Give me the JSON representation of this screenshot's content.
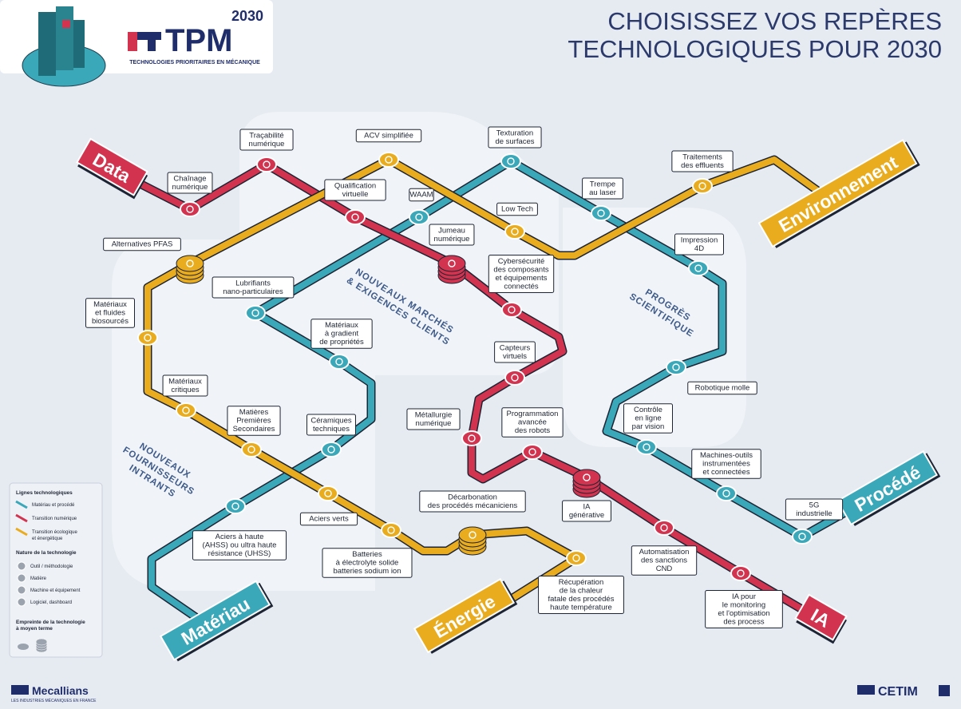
{
  "header": {
    "year": "2030",
    "brand": "TPM",
    "brand_subtitle": "TECHNOLOGIES PRIORITAIRES EN MÉCANIQUE",
    "title_lines": [
      "CHOISISSEZ VOS REPÈRES",
      "TECHNOLOGIQUES POUR 2030"
    ]
  },
  "zones": [
    [
      "NOUVEAUX MARCHÉS",
      "& EXIGENCES CLIENTS"
    ],
    [
      "PROGRÈS",
      "SCIENTIFIQUE"
    ],
    [
      "NOUVEAUX",
      "FOURNISSEURS",
      "INTRANTS"
    ]
  ],
  "lines": [
    {
      "color": "#3aa8b9",
      "terminals": [
        "Matériau",
        "Procédé"
      ],
      "stations": [
        {
          "label": [
            "Aciers à haute",
            "(AHSS) ou ultra haute",
            "résistance (UHSS)"
          ]
        },
        {
          "label": [
            "Céramiques",
            "techniques"
          ]
        },
        {
          "label": [
            "Matériaux",
            "à gradient",
            "de propriétés"
          ]
        },
        {
          "label": [
            "Lubrifiants",
            "nano-particulaires"
          ]
        },
        {
          "label": [
            "WAAM"
          ]
        },
        {
          "label": [
            "Texturation",
            "de surfaces"
          ]
        },
        {
          "label": [
            "Trempe",
            "au laser"
          ]
        },
        {
          "label": [
            "Impression",
            "4D"
          ]
        },
        {
          "label": [
            "Robotique molle"
          ]
        },
        {
          "label": [
            "Contrôle",
            "en ligne",
            "par vision"
          ]
        },
        {
          "label": [
            "Machines-outils",
            "instrumentées",
            "et connectées"
          ]
        },
        {
          "label": [
            "5G",
            "industrielle"
          ]
        }
      ]
    },
    {
      "color": "#d2344f",
      "terminals": [
        "Data",
        "IA"
      ],
      "stations": [
        {
          "label": [
            "Chaînage",
            "numérique"
          ]
        },
        {
          "label": [
            "Traçabilité",
            "numérique"
          ]
        },
        {
          "label": [
            "Qualification",
            "virtuelle"
          ]
        },
        {
          "label": [
            "Jumeau",
            "numérique"
          ],
          "large": true
        },
        {
          "label": [
            "Cybersécurité",
            "des composants",
            "et équipements",
            "connectés"
          ]
        },
        {
          "label": [
            "Capteurs",
            "virtuels"
          ]
        },
        {
          "label": [
            "Métallurgie",
            "numérique"
          ]
        },
        {
          "label": [
            "Programmation",
            "avancée",
            "des robots"
          ]
        },
        {
          "label": [
            "IA",
            "générative"
          ],
          "large": true
        },
        {
          "label": [
            "Automatisation",
            "des sanctions",
            "CND"
          ]
        },
        {
          "label": [
            "IA pour",
            "le monitoring",
            "et l'optimisation",
            "des process"
          ]
        }
      ]
    },
    {
      "color": "#e9ac1f",
      "terminals": [
        "Énergie",
        "Environnement"
      ],
      "stations": [
        {
          "label": [
            "Traitements",
            "des effluents"
          ]
        },
        {
          "label": [
            "Low Tech"
          ]
        },
        {
          "label": [
            "ACV simplifiée"
          ]
        },
        {
          "label": [
            "Alternatives PFAS"
          ],
          "large": true
        },
        {
          "label": [
            "Matériaux",
            "et fluides",
            "biosourcés"
          ]
        },
        {
          "label": [
            "Matériaux",
            "critiques"
          ]
        },
        {
          "label": [
            "Matières",
            "Premières",
            "Secondaires"
          ]
        },
        {
          "label": [
            "Aciers verts"
          ]
        },
        {
          "label": [
            "Batteries",
            "à électrolyte solide",
            "batteries sodium ion"
          ]
        },
        {
          "label": [
            "Décarbonation",
            "des procédés mécaniciens"
          ],
          "large": true
        },
        {
          "label": [
            "Récupération",
            "de la chaleur",
            "fatale des procédés",
            "haute température"
          ]
        }
      ]
    }
  ],
  "legend": {
    "lines_title": "Lignes technologiques",
    "lines": [
      [
        "Matériau et procédé"
      ],
      [
        "Transition numérique"
      ],
      [
        "Transition écologique",
        "et énergétique"
      ]
    ],
    "nature_title": "Nature de la technologie",
    "nature": [
      "Outil / méthodologie",
      "Matière",
      "Machine et équipement",
      "Logiciel, dashboard"
    ],
    "footprint_title": [
      "Empreinte de la technologie",
      "à moyen terme"
    ]
  },
  "footer": {
    "left_brand": "Mecallians",
    "left_subtitle": "LES INDUSTRIES MÉCANIQUES EN FRANCE",
    "right_brand": "CETIM"
  }
}
